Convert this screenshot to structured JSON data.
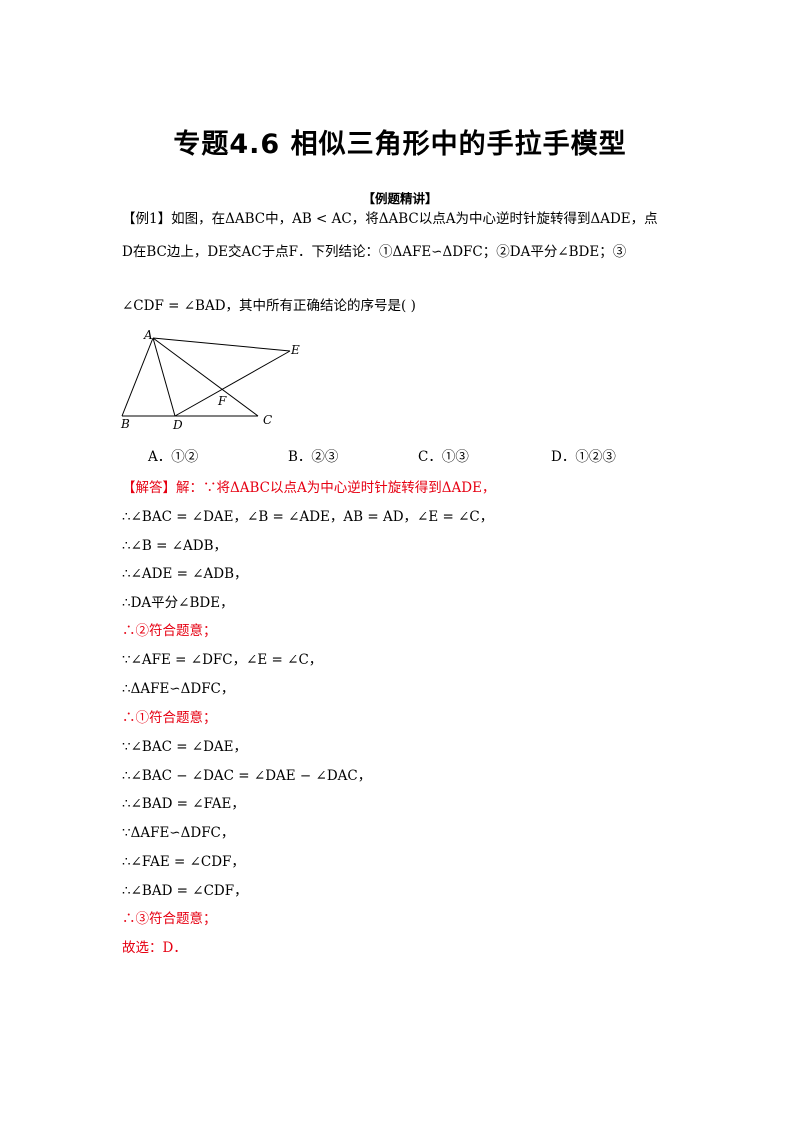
{
  "title": "专题4.6  相似三角形中的手拉手模型",
  "section": "【例题精讲】",
  "question": {
    "line1": "【例1】如图，在ΔABC中，AB < AC，将ΔABC以点A为中心逆时针旋转得到ΔADE，点",
    "line2": "D在BC边上，DE交AC于点F．下列结论：①ΔAFE∽ΔDFC；②DA平分∠BDE；③",
    "line3": "∠CDF = ∠BAD，其中所有正确结论的序号是(        )"
  },
  "figure_labels": [
    "A",
    "E",
    "F",
    "B",
    "D",
    "C"
  ],
  "options": [
    {
      "key": "A",
      "text": "A．①②"
    },
    {
      "key": "B",
      "text": "B．②③"
    },
    {
      "key": "C",
      "text": "C．①③"
    },
    {
      "key": "D",
      "text": "D．①②③"
    }
  ],
  "solution": [
    {
      "text": "【解答】解：∵将ΔABC以点A为中心逆时针旋转得到ΔADE，",
      "red": true
    },
    {
      "text": "∴∠BAC = ∠DAE，∠B = ∠ADE，AB = AD，∠E = ∠C，",
      "red": false
    },
    {
      "text": "∴∠B = ∠ADB，",
      "red": false
    },
    {
      "text": "∴∠ADE = ∠ADB，",
      "red": false
    },
    {
      "text": "∴DA平分∠BDE，",
      "red": false
    },
    {
      "text": "∴②符合题意；",
      "red": true
    },
    {
      "text": "∵∠AFE = ∠DFC，∠E = ∠C，",
      "red": false
    },
    {
      "text": "∴ΔAFE∽ΔDFC，",
      "red": false
    },
    {
      "text": "∴①符合题意；",
      "red": true
    },
    {
      "text": "∵∠BAC = ∠DAE，",
      "red": false
    },
    {
      "text": "∴∠BAC − ∠DAC = ∠DAE − ∠DAC，",
      "red": false
    },
    {
      "text": "∴∠BAD = ∠FAE，",
      "red": false
    },
    {
      "text": "∵ΔAFE∽ΔDFC，",
      "red": false
    },
    {
      "text": "∴∠FAE = ∠CDF，",
      "red": false
    },
    {
      "text": "∴∠BAD = ∠CDF，",
      "red": false
    },
    {
      "text": "∴③符合题意；",
      "red": true
    },
    {
      "text": "故选：D．",
      "red": true
    }
  ]
}
